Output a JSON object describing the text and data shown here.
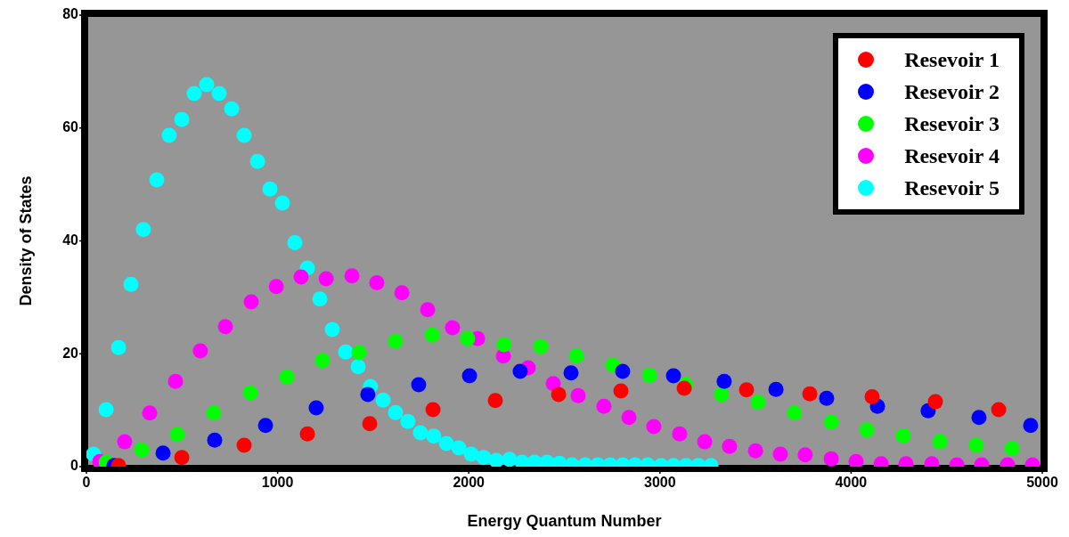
{
  "chart_data": {
    "type": "scatter",
    "xlabel": "Energy Quantum Number",
    "ylabel": "Density of States",
    "xlim": [
      0,
      5000
    ],
    "ylim": [
      0,
      80
    ],
    "xticks": [
      0,
      1000,
      2000,
      3000,
      4000,
      5000
    ],
    "yticks": [
      0,
      20,
      40,
      60,
      80
    ],
    "legend": "top right",
    "marker": "circle",
    "series": [
      {
        "name": "Resevoir 1",
        "color": "#ff0000",
        "x": [
          168,
          499,
          825,
          1156,
          1482,
          1813,
          2139,
          2470,
          2796,
          3127,
          3453,
          3784,
          4110,
          4441,
          4772
        ],
        "values": [
          0.2,
          1.6,
          3.8,
          5.8,
          7.6,
          10.1,
          11.7,
          12.8,
          13.4,
          13.9,
          13.6,
          12.9,
          12.4,
          11.5,
          10.1
        ]
      },
      {
        "name": "Resevoir 2",
        "color": "#0000ff",
        "x": [
          144,
          401,
          671,
          937,
          1202,
          1472,
          1738,
          2004,
          2269,
          2535,
          2805,
          3071,
          3336,
          3607,
          3872,
          4138,
          4403,
          4669,
          4939
        ],
        "values": [
          0.2,
          2.4,
          4.7,
          7.3,
          10.4,
          12.8,
          14.5,
          16.1,
          16.9,
          16.6,
          16.9,
          16.1,
          15.1,
          13.7,
          12.1,
          10.7,
          9.9,
          8.7,
          7.3
        ]
      },
      {
        "name": "Resevoir 3",
        "color": "#00ff00",
        "x": [
          103,
          289,
          475,
          666,
          857,
          1049,
          1235,
          1426,
          1617,
          1808,
          1994,
          2185,
          2376,
          2563,
          2754,
          2945,
          3136,
          3322,
          3513,
          3704,
          3896,
          4082,
          4273,
          4464,
          4655,
          4842
        ],
        "values": [
          0.8,
          3.0,
          5.7,
          9.5,
          13.1,
          15.9,
          18.8,
          20.2,
          22.2,
          23.3,
          22.7,
          21.6,
          21.3,
          19.6,
          18.0,
          16.2,
          14.5,
          12.8,
          11.4,
          9.5,
          7.9,
          6.5,
          5.5,
          4.4,
          3.8,
          3.2
        ]
      },
      {
        "name": "Resevoir 4",
        "color": "#ff00ff",
        "x": [
          70,
          200,
          331,
          466,
          596,
          727,
          862,
          993,
          1123,
          1254,
          1389,
          1519,
          1650,
          1785,
          1915,
          2046,
          2181,
          2311,
          2442,
          2572,
          2707,
          2838,
          2968,
          3103,
          3234,
          3364,
          3500,
          3630,
          3760,
          3896,
          4026,
          4157,
          4287,
          4422,
          4553,
          4683,
          4818,
          4949
        ],
        "values": [
          0.9,
          4.4,
          9.5,
          15.1,
          20.5,
          24.8,
          29.2,
          31.9,
          33.6,
          33.3,
          33.8,
          32.6,
          30.8,
          27.8,
          24.6,
          22.7,
          19.6,
          17.5,
          14.7,
          12.6,
          10.7,
          8.7,
          7.1,
          5.8,
          4.4,
          3.6,
          2.8,
          2.2,
          2.1,
          1.4,
          0.9,
          0.5,
          0.5,
          0.5,
          0.3,
          0.3,
          0.3,
          0.3
        ]
      },
      {
        "name": "Resevoir 5",
        "color": "#00ffff",
        "x": [
          37,
          103,
          168,
          233,
          298,
          368,
          433,
          499,
          564,
          629,
          694,
          760,
          825,
          895,
          960,
          1025,
          1090,
          1156,
          1221,
          1286,
          1356,
          1421,
          1486,
          1552,
          1617,
          1682,
          1747,
          1817,
          1883,
          1948,
          2013,
          2078,
          2144,
          2213,
          2279,
          2344,
          2409,
          2474,
          2540,
          2609,
          2675,
          2740,
          2805,
          2870,
          2936,
          3006,
          3071,
          3136,
          3201,
          3267
        ],
        "values": [
          2.2,
          10.1,
          21.1,
          32.3,
          42.0,
          50.8,
          58.7,
          61.5,
          66.1,
          67.7,
          66.1,
          63.4,
          58.7,
          54.1,
          49.2,
          46.7,
          39.7,
          35.2,
          29.7,
          24.3,
          20.3,
          17.7,
          14.2,
          11.8,
          9.6,
          8.0,
          6.0,
          5.4,
          4.1,
          3.3,
          2.2,
          1.6,
          1.1,
          1.3,
          0.8,
          0.8,
          0.8,
          0.6,
          0.3,
          0.3,
          0.3,
          0.3,
          0.3,
          0.3,
          0.3,
          0.2,
          0.2,
          0.2,
          0.2,
          0.2
        ]
      }
    ]
  }
}
